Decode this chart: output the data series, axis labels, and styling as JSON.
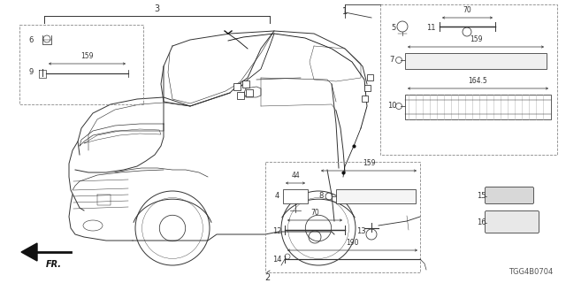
{
  "bg_color": "#ffffff",
  "diagram_code": "TGG4B0704",
  "line_color": "#333333",
  "dash_color": "#888888"
}
